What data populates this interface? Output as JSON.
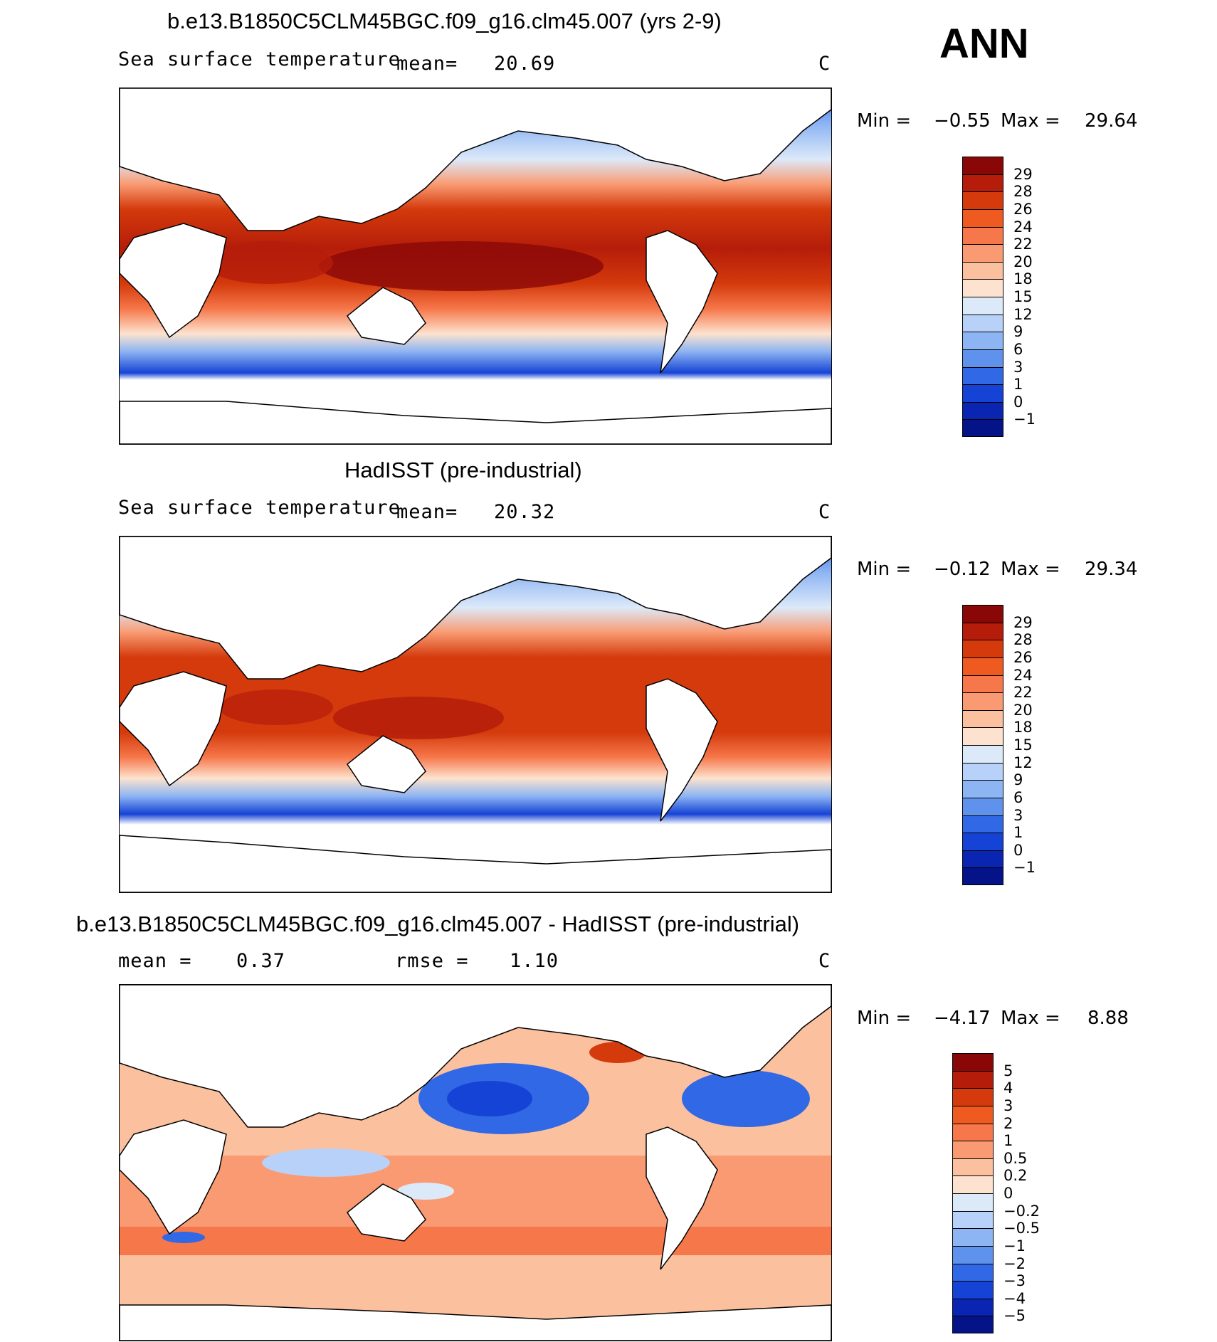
{
  "season": "ANN",
  "panels": [
    {
      "id": "model",
      "title": "b.e13.B1850C5CLM45BGC.f09_g16.clm45.007 (yrs 2-9)",
      "variable": "Sea surface temperature",
      "stat_left": "mean=",
      "stat_left_value": "20.69",
      "stat_right": "",
      "stat_right_value": "",
      "units": "C",
      "min_label": "Min =",
      "min_value": "−0.55",
      "max_label": "Max =",
      "max_value": "29.64",
      "colorbar": {
        "labels": [
          "29",
          "28",
          "26",
          "24",
          "22",
          "20",
          "18",
          "15",
          "12",
          "9",
          "6",
          "3",
          "1",
          "0",
          "−1"
        ],
        "colors": [
          "#8a0707",
          "#b51d0a",
          "#d43a0c",
          "#ee5a1f",
          "#f6774a",
          "#f99a72",
          "#fbc09e",
          "#fde3cf",
          "#dce9f9",
          "#b8d1f8",
          "#8db4f3",
          "#5f92ec",
          "#3068e6",
          "#1543d5",
          "#0a25b1",
          "#041488"
        ]
      }
    },
    {
      "id": "obs",
      "title": "HadISST (pre-industrial)",
      "variable": "Sea surface temperature",
      "stat_left": "mean=",
      "stat_left_value": "20.32",
      "stat_right": "",
      "stat_right_value": "",
      "units": "C",
      "min_label": "Min =",
      "min_value": "−0.12",
      "max_label": "Max =",
      "max_value": "29.34",
      "colorbar": {
        "labels": [
          "29",
          "28",
          "26",
          "24",
          "22",
          "20",
          "18",
          "15",
          "12",
          "9",
          "6",
          "3",
          "1",
          "0",
          "−1"
        ],
        "colors": [
          "#8a0707",
          "#b51d0a",
          "#d43a0c",
          "#ee5a1f",
          "#f6774a",
          "#f99a72",
          "#fbc09e",
          "#fde3cf",
          "#dce9f9",
          "#b8d1f8",
          "#8db4f3",
          "#5f92ec",
          "#3068e6",
          "#1543d5",
          "#0a25b1",
          "#041488"
        ]
      }
    },
    {
      "id": "diff",
      "title": "b.e13.B1850C5CLM45BGC.f09_g16.clm45.007 - HadISST (pre-industrial)",
      "variable": "",
      "stat_left": "mean =",
      "stat_left_value": "0.37",
      "stat_right": "rmse =",
      "stat_right_value": "1.10",
      "units": "C",
      "min_label": "Min =",
      "min_value": "−4.17",
      "max_label": "Max =",
      "max_value": "8.88",
      "colorbar": {
        "labels": [
          "5",
          "4",
          "3",
          "2",
          "1",
          "0.5",
          "0.2",
          "0",
          "−0.2",
          "−0.5",
          "−1",
          "−2",
          "−3",
          "−4",
          "−5"
        ],
        "colors": [
          "#8a0707",
          "#b51d0a",
          "#d43a0c",
          "#ee5a1f",
          "#f6774a",
          "#f99a72",
          "#fbc09e",
          "#fde3cf",
          "#dce9f9",
          "#b8d1f8",
          "#8db4f3",
          "#5f92ec",
          "#3068e6",
          "#1543d5",
          "#0a25b1",
          "#041488"
        ]
      }
    }
  ]
}
